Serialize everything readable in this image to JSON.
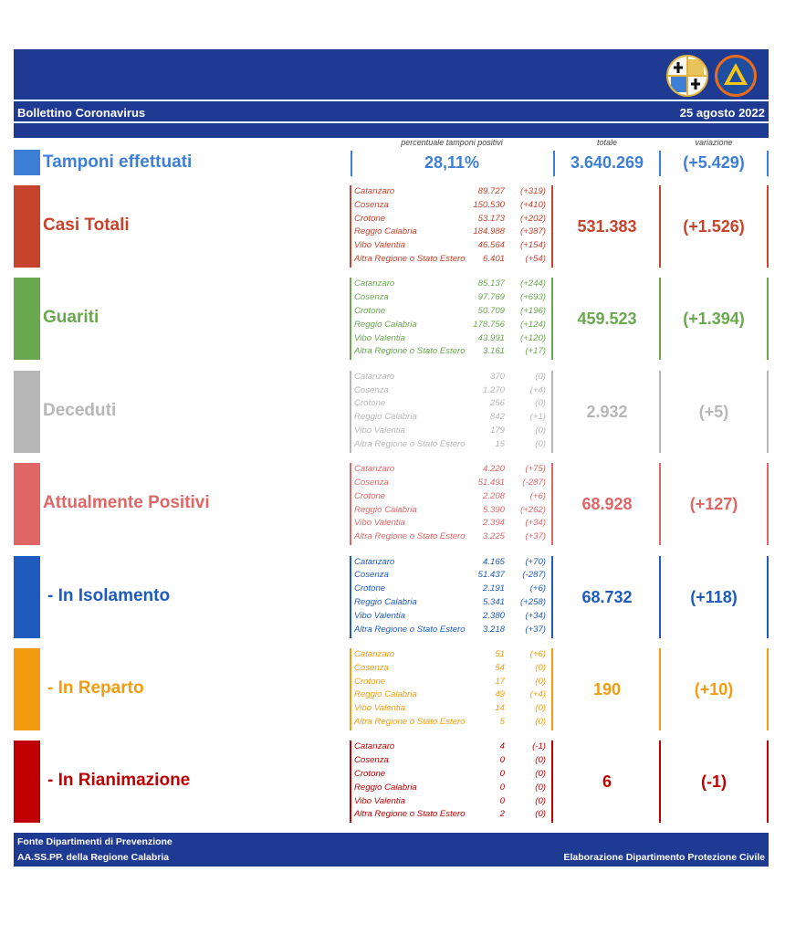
{
  "header": {
    "title": "Bollettino Coronavirus",
    "date": "25 agosto 2022"
  },
  "logos": [
    {
      "icon": "calabria-coat-of-arms-icon"
    },
    {
      "icon": "protezione-civile-logo-icon"
    }
  ],
  "columns": {
    "percent": "percentuale tamponi positivi",
    "total": "totale",
    "change": "variazione"
  },
  "tamponi": {
    "label": "Tamponi effettuati",
    "percent": "28,11%",
    "total": "3.640.269",
    "change": "(+5.429)",
    "color": "#3d7fd6"
  },
  "rows": [
    {
      "label": "Casi Totali",
      "color": "#c8432b",
      "total": "531.383",
      "change": "(+1.526)",
      "provinces": [
        {
          "name": "Catanzaro",
          "value": "89.727",
          "delta": "(+319)"
        },
        {
          "name": "Cosenza",
          "value": "150.530",
          "delta": "(+410)"
        },
        {
          "name": "Crotone",
          "value": "53.173",
          "delta": "(+202)"
        },
        {
          "name": "Reggio Calabria",
          "value": "184.988",
          "delta": "(+387)"
        },
        {
          "name": "Vibo Valentia",
          "value": "46.564",
          "delta": "(+154)"
        },
        {
          "name": "Altra Regione o Stato Estero",
          "value": "6.401",
          "delta": "(+54)"
        }
      ]
    },
    {
      "label": "Guariti",
      "color": "#6aa84f",
      "total": "459.523",
      "change": "(+1.394)",
      "provinces": [
        {
          "name": "Catanzaro",
          "value": "85.137",
          "delta": "(+244)"
        },
        {
          "name": "Cosenza",
          "value": "97.769",
          "delta": "(+693)"
        },
        {
          "name": "Crotone",
          "value": "50.709",
          "delta": "(+196)"
        },
        {
          "name": "Reggio Calabria",
          "value": "178.756",
          "delta": "(+124)"
        },
        {
          "name": "Vibo Valentia",
          "value": "43.991",
          "delta": "(+120)"
        },
        {
          "name": "Altra Regione o Stato Estero",
          "value": "3.161",
          "delta": "(+17)"
        }
      ]
    },
    {
      "label": "Deceduti",
      "color": "#b7b7b7",
      "total": "2.932",
      "change": "(+5)",
      "provinces": [
        {
          "name": "Catanzaro",
          "value": "370",
          "delta": "(0)"
        },
        {
          "name": "Cosenza",
          "value": "1.270",
          "delta": "(+4)"
        },
        {
          "name": "Crotone",
          "value": "256",
          "delta": "(0)"
        },
        {
          "name": "Reggio Calabria",
          "value": "842",
          "delta": "(+1)"
        },
        {
          "name": "Vibo Valentia",
          "value": "179",
          "delta": "(0)"
        },
        {
          "name": "Altra Regione o Stato Estero",
          "value": "15",
          "delta": "(0)"
        }
      ]
    },
    {
      "label": "Attualmente Positivi",
      "color": "#e06666",
      "total": "68.928",
      "change": "(+127)",
      "provinces": [
        {
          "name": "Catanzaro",
          "value": "4.220",
          "delta": "(+75)"
        },
        {
          "name": "Cosenza",
          "value": "51.491",
          "delta": "(-287)"
        },
        {
          "name": "Crotone",
          "value": "2.208",
          "delta": "(+6)"
        },
        {
          "name": "Reggio Calabria",
          "value": "5.390",
          "delta": "(+262)"
        },
        {
          "name": "Vibo Valentia",
          "value": "2.394",
          "delta": "(+34)"
        },
        {
          "name": "Altra Regione o Stato Estero",
          "value": "3.225",
          "delta": "(+37)"
        }
      ]
    },
    {
      "label": " - In Isolamento",
      "color": "#1f5bbf",
      "total": "68.732",
      "change": "(+118)",
      "provinces": [
        {
          "name": "Catanzaro",
          "value": "4.165",
          "delta": "(+70)"
        },
        {
          "name": "Cosenza",
          "value": "51.437",
          "delta": "(-287)"
        },
        {
          "name": "Crotone",
          "value": "2.191",
          "delta": "(+6)"
        },
        {
          "name": "Reggio Calabria",
          "value": "5.341",
          "delta": "(+258)"
        },
        {
          "name": "Vibo Valentia",
          "value": "2.380",
          "delta": "(+34)"
        },
        {
          "name": "Altra Regione o Stato Estero",
          "value": "3.218",
          "delta": "(+37)"
        }
      ]
    },
    {
      "label": " - In Reparto",
      "color": "#f39c12",
      "total": "190",
      "change": "(+10)",
      "provinces": [
        {
          "name": "Catanzaro",
          "value": "51",
          "delta": "(+6)"
        },
        {
          "name": "Cosenza",
          "value": "54",
          "delta": "(0)"
        },
        {
          "name": "Crotone",
          "value": "17",
          "delta": "(0)"
        },
        {
          "name": "Reggio Calabria",
          "value": "49",
          "delta": "(+4)"
        },
        {
          "name": "Vibo Valentia",
          "value": "14",
          "delta": "(0)"
        },
        {
          "name": "Altra Regione o Stato Estero",
          "value": "5",
          "delta": "(0)"
        }
      ]
    },
    {
      "label": " - In Rianimazione",
      "color": "#c00000",
      "total": "6",
      "change": "(-1)",
      "provinces": [
        {
          "name": "Catanzaro",
          "value": "4",
          "delta": "(-1)"
        },
        {
          "name": "Cosenza",
          "value": "0",
          "delta": "(0)"
        },
        {
          "name": "Crotone",
          "value": "0",
          "delta": "(0)"
        },
        {
          "name": "Reggio Calabria",
          "value": "0",
          "delta": "(0)"
        },
        {
          "name": "Vibo Valentia",
          "value": "0",
          "delta": "(0)"
        },
        {
          "name": "Altra Regione o Stato Estero",
          "value": "2",
          "delta": "(0)"
        }
      ]
    }
  ],
  "footer": {
    "source1": "Fonte Dipartimenti di Prevenzione",
    "source2": "AA.SS.PP.  della Regione Calabria",
    "credit": "Elaborazione Dipartimento Protezione Civile"
  }
}
